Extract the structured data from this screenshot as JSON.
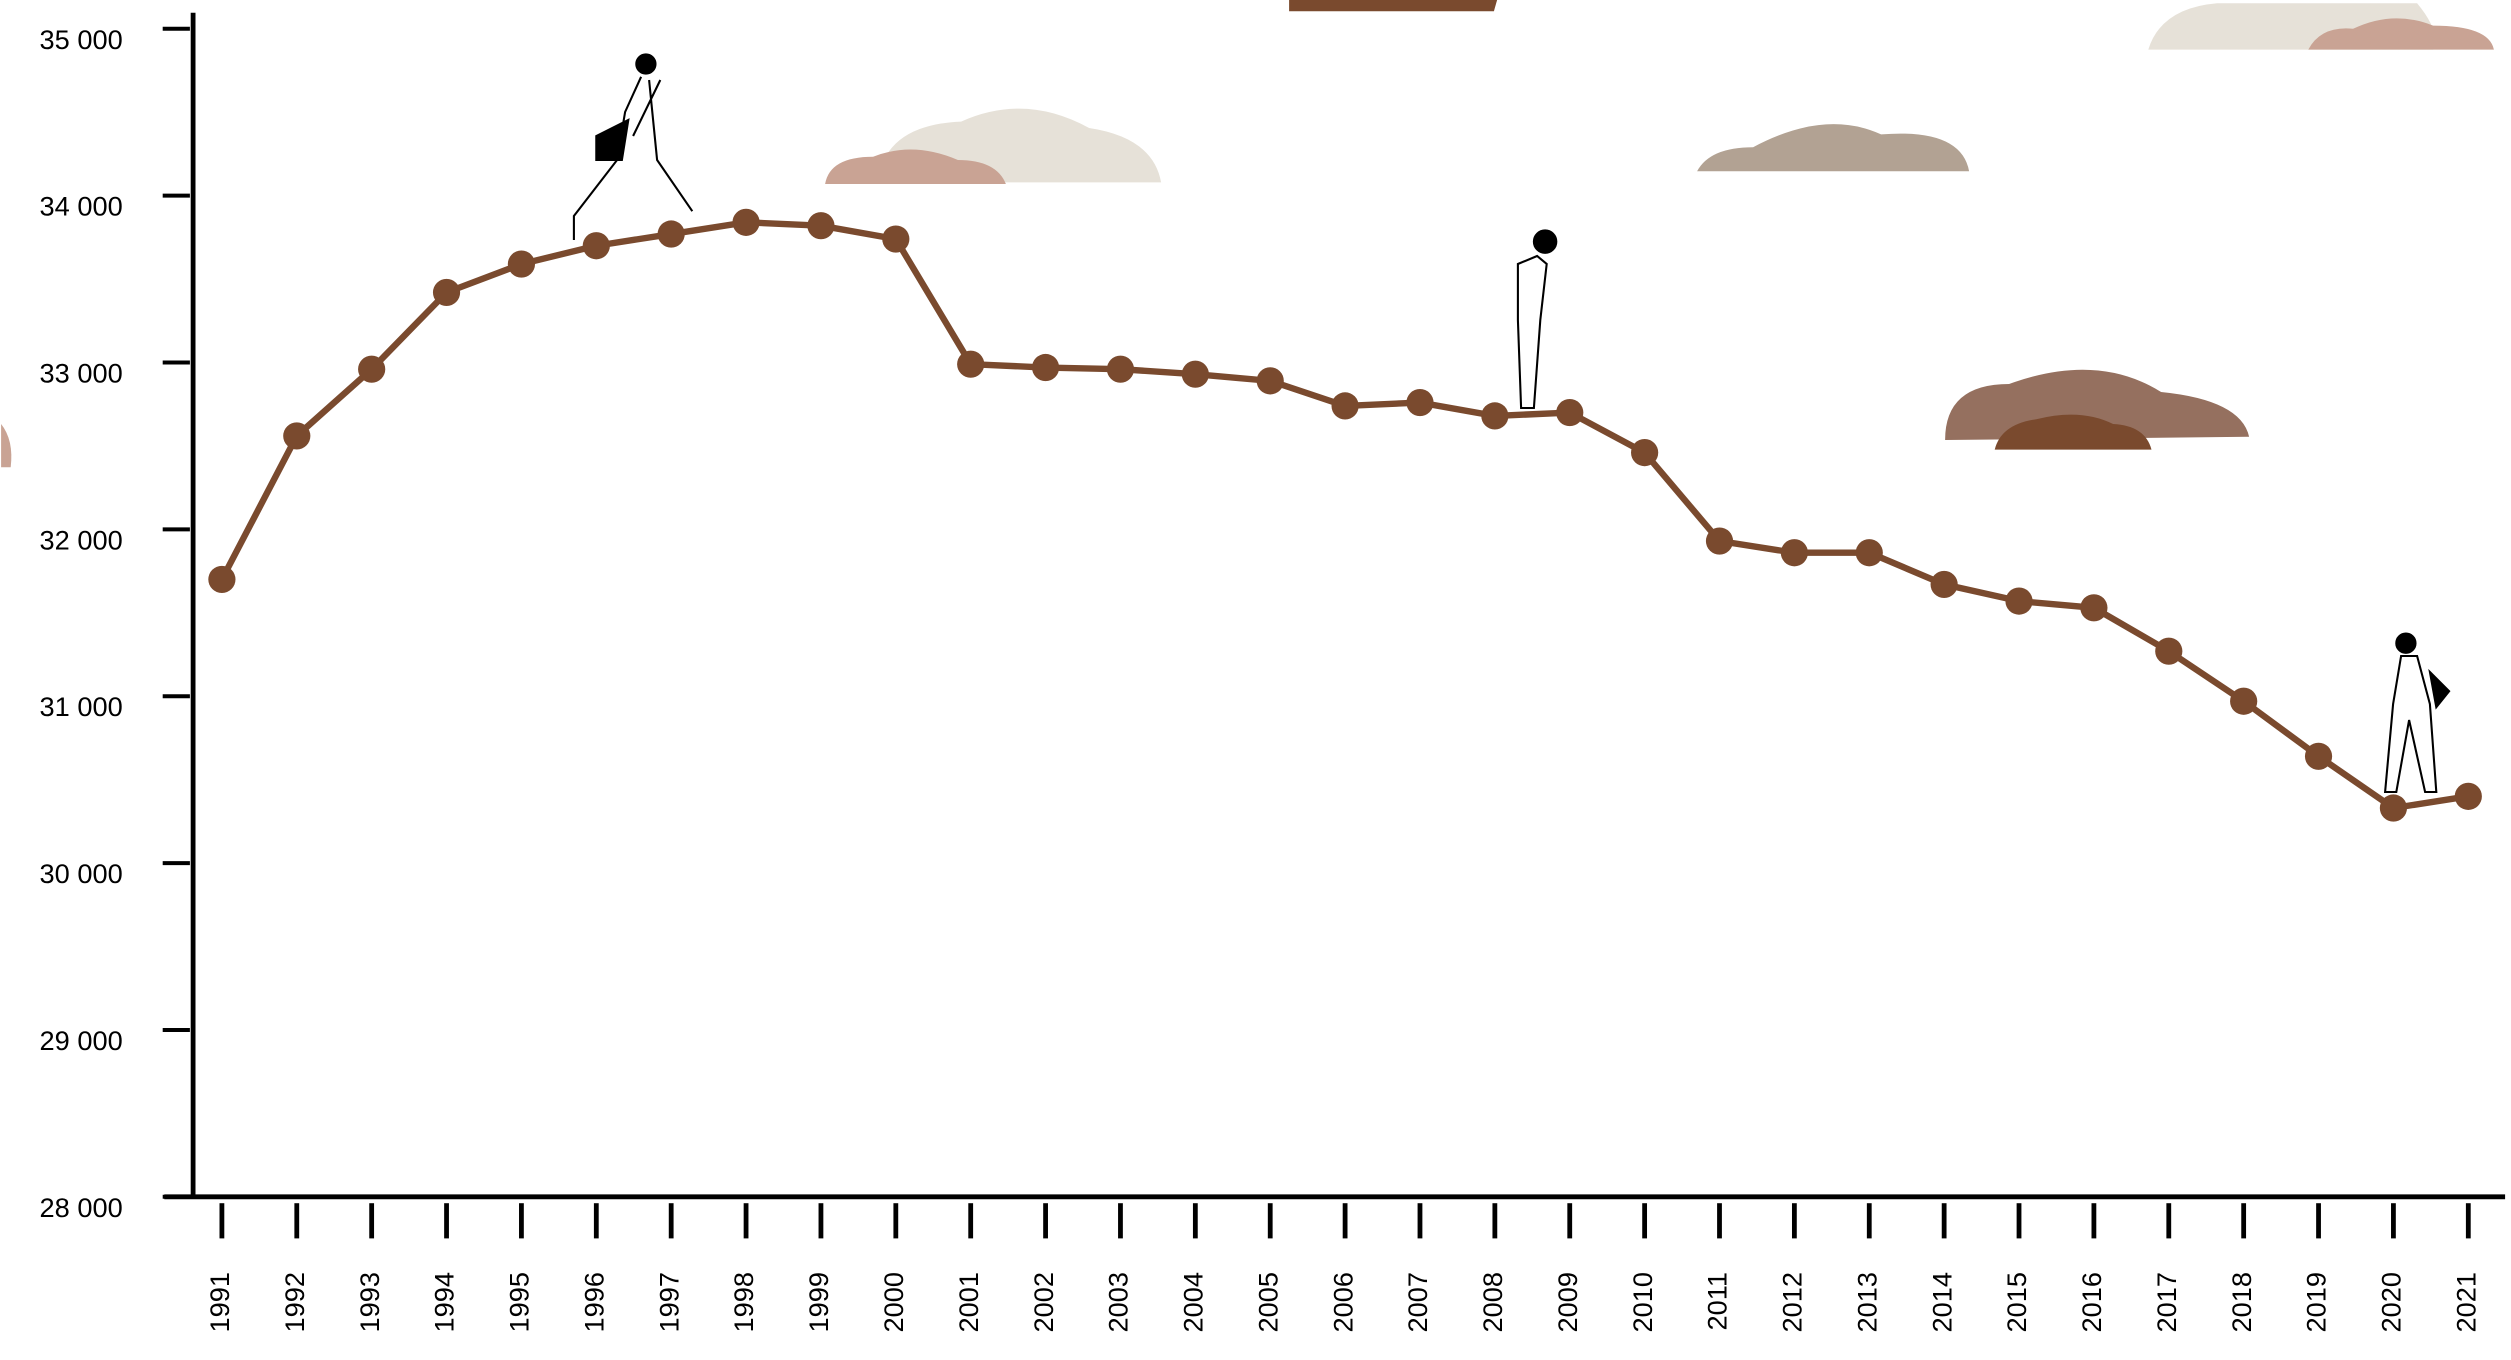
{
  "chart_data": {
    "type": "line",
    "categories": [
      "1991",
      "1992",
      "1993",
      "1994",
      "1995",
      "1996",
      "1997",
      "1998",
      "1999",
      "2000",
      "2001",
      "2002",
      "2003",
      "2004",
      "2005",
      "2006",
      "2007",
      "2008",
      "2009",
      "2010",
      "2011",
      "2012",
      "2013",
      "2014",
      "2015",
      "2016",
      "2017",
      "2018",
      "2019",
      "2020",
      "2021"
    ],
    "series": [
      {
        "color": "#7a4a2e",
        "values": [
          31700,
          32560,
          32960,
          33420,
          33590,
          33700,
          33770,
          33840,
          33820,
          33740,
          32990,
          32970,
          32960,
          32930,
          32890,
          32740,
          32760,
          32680,
          32700,
          32460,
          31930,
          31860,
          31860,
          31670,
          31570,
          31530,
          31270,
          30970,
          30640,
          30330,
          30400
        ]
      }
    ],
    "ylim": [
      28000,
      35000
    ],
    "yticks": [
      {
        "value": 28000,
        "label": "28 000"
      },
      {
        "value": 29000,
        "label": "29 000"
      },
      {
        "value": 30000,
        "label": "30 000"
      },
      {
        "value": 31000,
        "label": "31 000"
      },
      {
        "value": 32000,
        "label": "32 000"
      },
      {
        "value": 33000,
        "label": "33 000"
      },
      {
        "value": 34000,
        "label": "34 000"
      },
      {
        "value": 35000,
        "label": "35 000"
      }
    ]
  }
}
